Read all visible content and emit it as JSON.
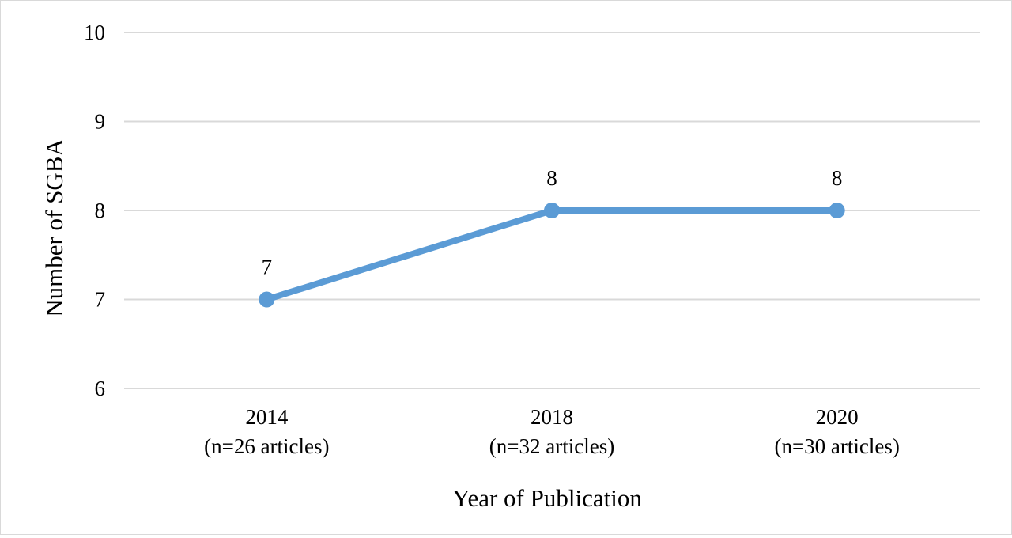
{
  "chart_data": {
    "type": "line",
    "title": "",
    "xlabel": "Year of Publication",
    "ylabel": "Number of SGBA",
    "ylim": [
      6,
      10
    ],
    "yticks": [
      6,
      7,
      8,
      9,
      10
    ],
    "grid": true,
    "legend": "none",
    "categories": [
      {
        "year": "2014",
        "sub": "(n=26 articles)"
      },
      {
        "year": "2018",
        "sub": "(n=32 articles)"
      },
      {
        "year": "2020",
        "sub": "(n=30 articles)"
      }
    ],
    "series": [
      {
        "values": [
          7,
          8,
          8
        ],
        "data_labels": [
          "7",
          "8",
          "8"
        ],
        "color": "#5b9bd5"
      }
    ],
    "gridline_color": "#d9d9d9"
  }
}
